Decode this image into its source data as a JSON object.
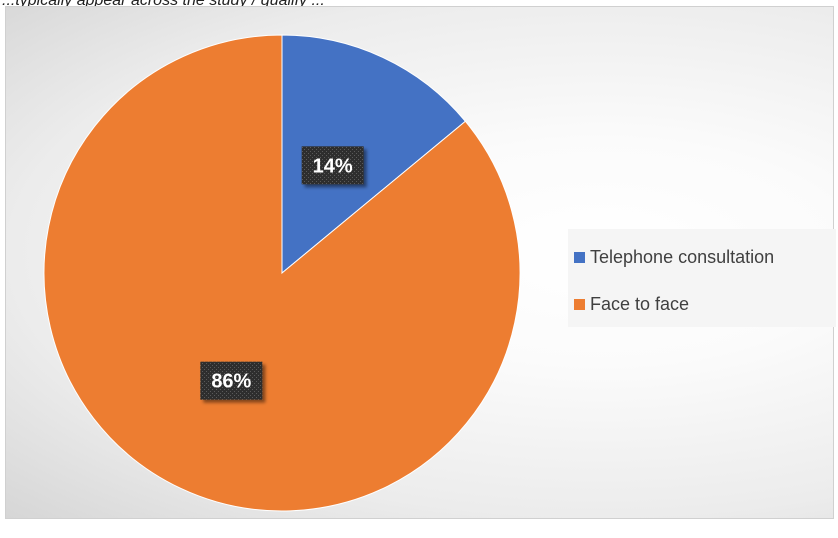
{
  "caption": "...typically appear across the study / qualify ...",
  "chart_data": {
    "type": "pie",
    "title": "",
    "series": [
      {
        "name": "Telephone consultation",
        "value": 14,
        "label": "14%",
        "color": "#4472C4"
      },
      {
        "name": "Face to face",
        "value": 86,
        "label": "86%",
        "color": "#ED7D31"
      }
    ],
    "start_angle_deg": 0,
    "direction": "clockwise",
    "data_label_style": "white bold text on dark patterned box",
    "legend_position": "right"
  },
  "legend": {
    "items": [
      {
        "label": "Telephone consultation",
        "color": "#4472C4"
      },
      {
        "label": "Face to face",
        "color": "#ED7D31"
      }
    ]
  }
}
